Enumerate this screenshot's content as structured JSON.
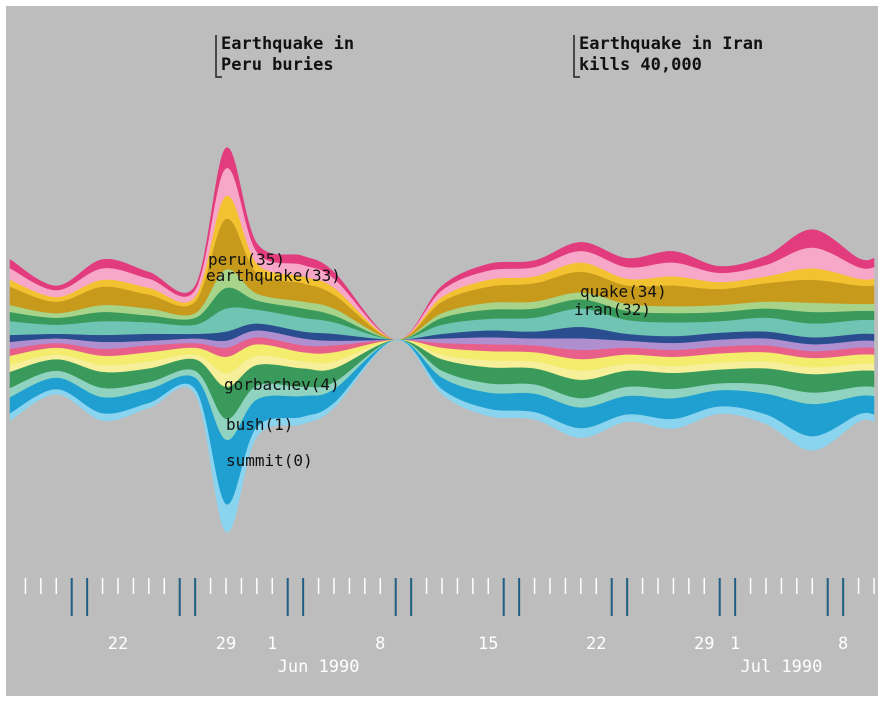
{
  "chart_data": {
    "type": "area",
    "subtype": "streamgraph",
    "background_color": "#bdbdbd",
    "annotations": [
      {
        "lines": [
          "Earthquake in",
          "Peru buries"
        ],
        "date": "1990-05-31"
      },
      {
        "lines": [
          "Earthquake in Iran",
          "kills 40,000"
        ],
        "date": "1990-06-22"
      }
    ],
    "x_ticks": [
      {
        "label": "22",
        "date": "1990-05-22"
      },
      {
        "label": "29",
        "date": "1990-05-29"
      },
      {
        "label": "1",
        "date": "1990-06-01"
      },
      {
        "label": "8",
        "date": "1990-06-08"
      },
      {
        "label": "15",
        "date": "1990-06-15"
      },
      {
        "label": "22",
        "date": "1990-06-22"
      },
      {
        "label": "29",
        "date": "1990-06-29"
      },
      {
        "label": "1",
        "date": "1990-07-01"
      },
      {
        "label": "8",
        "date": "1990-07-08"
      }
    ],
    "month_labels": [
      {
        "label": "Jun 1990",
        "date": "1990-06-04"
      },
      {
        "label": "Jul 1990",
        "date": "1990-07-04"
      }
    ],
    "series_labels": [
      {
        "text": "peru(35)",
        "date": "1990-05-29"
      },
      {
        "text": "earthquake(33)",
        "date": "1990-05-29"
      },
      {
        "text": "quake(34)",
        "date": "1990-06-22"
      },
      {
        "text": "iran(32)",
        "date": "1990-06-22"
      },
      {
        "text": "gorbachev(4)",
        "date": "1990-05-30"
      },
      {
        "text": "bush(1)",
        "date": "1990-05-30"
      },
      {
        "text": "summit(0)",
        "date": "1990-05-30"
      }
    ],
    "x": [
      "1990-05-15",
      "1990-05-18",
      "1990-05-21",
      "1990-05-24",
      "1990-05-27",
      "1990-05-29",
      "1990-05-31",
      "1990-06-03",
      "1990-06-05",
      "1990-06-09",
      "1990-06-12",
      "1990-06-15",
      "1990-06-18",
      "1990-06-21",
      "1990-06-24",
      "1990-06-27",
      "1990-06-30",
      "1990-07-03",
      "1990-07-06",
      "1990-07-09",
      "1990-07-10"
    ],
    "series": [
      {
        "color": "#e23c7f",
        "values": [
          4,
          2,
          4,
          3,
          2,
          9,
          4,
          4,
          3,
          0,
          2,
          3,
          3,
          4,
          4,
          5,
          3,
          4,
          8,
          4,
          4
        ]
      },
      {
        "color": "#f7a8c8",
        "values": [
          5,
          3,
          5,
          4,
          3,
          12,
          5,
          5,
          4,
          0,
          3,
          4,
          4,
          5,
          5,
          6,
          4,
          5,
          9,
          5,
          5
        ]
      },
      {
        "color": "#f2c230",
        "values": [
          3,
          2,
          3,
          3,
          2,
          10,
          4,
          3,
          3,
          0,
          2,
          3,
          3,
          4,
          3,
          4,
          3,
          3,
          5,
          3,
          3
        ]
      },
      {
        "color": "#c89a1c",
        "values": [
          8,
          5,
          8,
          6,
          5,
          22,
          9,
          8,
          6,
          0,
          5,
          7,
          8,
          9,
          8,
          9,
          7,
          8,
          10,
          8,
          8
        ]
      },
      {
        "color": "#a8d48a",
        "values": [
          3,
          2,
          3,
          3,
          2,
          8,
          3,
          3,
          3,
          0,
          2,
          3,
          3,
          3,
          3,
          3,
          3,
          3,
          4,
          3,
          3
        ]
      },
      {
        "color": "#3a9a5c",
        "values": [
          4,
          3,
          4,
          3,
          3,
          9,
          4,
          4,
          3,
          0,
          3,
          4,
          4,
          4,
          4,
          4,
          4,
          4,
          5,
          4,
          4
        ]
      },
      {
        "color": "#6fc4b4",
        "values": [
          6,
          4,
          6,
          5,
          4,
          10,
          6,
          6,
          5,
          0,
          4,
          5,
          6,
          8,
          6,
          6,
          5,
          6,
          6,
          6,
          6
        ]
      },
      {
        "color": "#2a4d8f",
        "values": [
          3,
          2,
          3,
          3,
          2,
          4,
          3,
          3,
          3,
          0,
          2,
          3,
          3,
          5,
          3,
          3,
          3,
          3,
          3,
          3,
          3
        ]
      },
      {
        "color": "#b08fd0",
        "values": [
          3,
          2,
          3,
          2,
          2,
          3,
          3,
          3,
          2,
          0,
          2,
          3,
          3,
          5,
          3,
          3,
          3,
          3,
          3,
          3,
          3
        ]
      },
      {
        "color": "#e85f8a",
        "values": [
          3,
          2,
          3,
          3,
          2,
          4,
          3,
          3,
          3,
          0,
          2,
          3,
          3,
          4,
          3,
          3,
          3,
          3,
          3,
          3,
          3
        ]
      },
      {
        "color": "#f4ec6c",
        "values": [
          4,
          3,
          4,
          4,
          3,
          7,
          5,
          4,
          4,
          0,
          3,
          4,
          4,
          5,
          4,
          4,
          4,
          4,
          4,
          4,
          4
        ]
      },
      {
        "color": "#f7ef9a",
        "values": [
          3,
          2,
          3,
          3,
          2,
          6,
          4,
          3,
          3,
          0,
          2,
          3,
          3,
          4,
          3,
          3,
          3,
          3,
          3,
          3,
          3
        ]
      },
      {
        "color": "#3a9a5c",
        "values": [
          7,
          5,
          7,
          6,
          5,
          14,
          9,
          8,
          6,
          0,
          5,
          7,
          7,
          8,
          7,
          7,
          6,
          7,
          8,
          7,
          7
        ]
      },
      {
        "color": "#8fd3c0",
        "values": [
          4,
          3,
          4,
          3,
          3,
          9,
          6,
          4,
          3,
          0,
          3,
          4,
          4,
          4,
          4,
          4,
          3,
          4,
          5,
          4,
          4
        ]
      },
      {
        "color": "#1fa0d0",
        "values": [
          7,
          5,
          7,
          6,
          5,
          28,
          12,
          9,
          6,
          0,
          5,
          7,
          8,
          9,
          8,
          9,
          7,
          9,
          14,
          8,
          8
        ]
      },
      {
        "color": "#8ad4f0",
        "values": [
          3,
          2,
          3,
          2,
          2,
          12,
          4,
          3,
          2,
          0,
          2,
          3,
          3,
          4,
          3,
          4,
          3,
          4,
          6,
          3,
          3
        ]
      }
    ]
  }
}
